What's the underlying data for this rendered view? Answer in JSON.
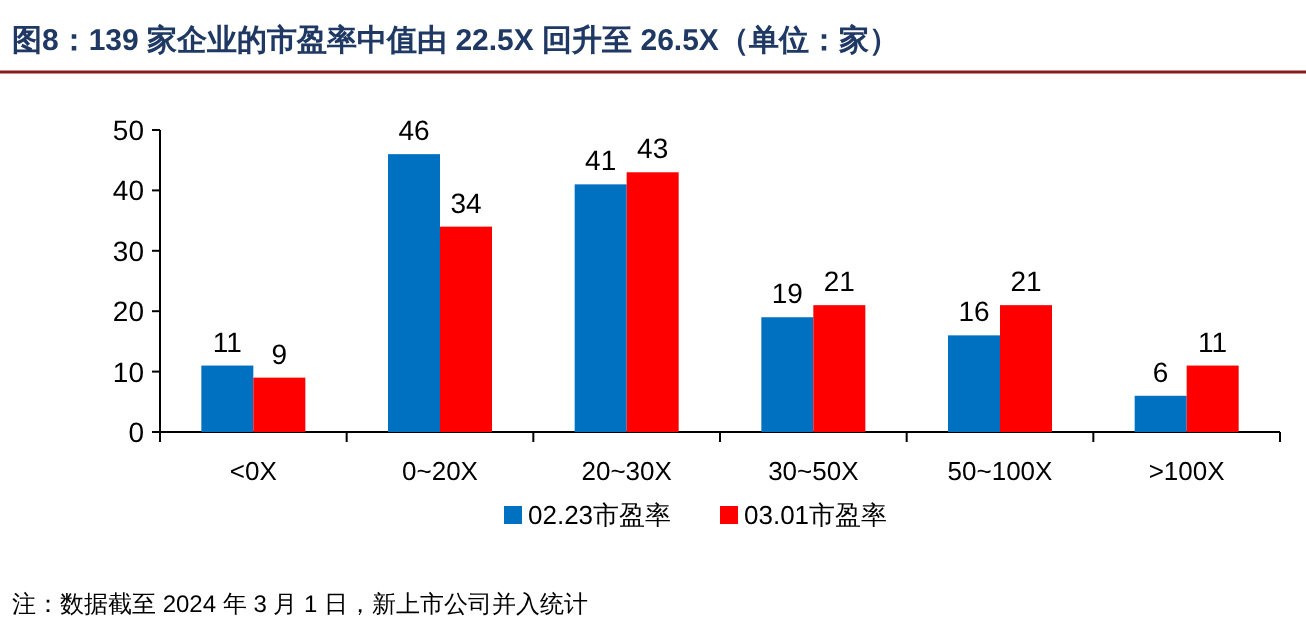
{
  "chart_data": {
    "type": "bar",
    "title": "图8：139 家企业的市盈率中值由 22.5X 回升至 26.5X（单位：家）",
    "categories": [
      "<0X",
      "0~20X",
      "20~30X",
      "30~50X",
      "50~100X",
      ">100X"
    ],
    "series": [
      {
        "name": "02.23市盈率",
        "color": "#0070c0",
        "values": [
          11,
          46,
          41,
          19,
          16,
          6
        ]
      },
      {
        "name": "03.01市盈率",
        "color": "#ff0000",
        "values": [
          9,
          34,
          43,
          21,
          21,
          11
        ]
      }
    ],
    "ylim": [
      0,
      50
    ],
    "yticks": [
      0,
      10,
      20,
      30,
      40,
      50
    ],
    "grid": false,
    "legend": "bottom",
    "data_labels": true,
    "annotations": [
      "注：数据截至 2024 年 3 月 1 日，新上市公司并入统计"
    ]
  }
}
